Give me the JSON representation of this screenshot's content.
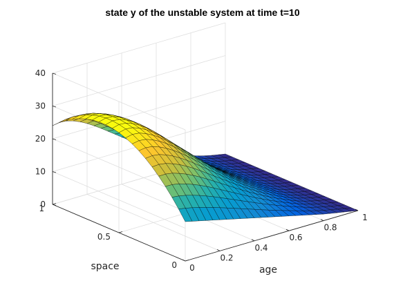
{
  "chart_data": {
    "type": "surface",
    "title": "state y of the unstable system at time t=10",
    "xlabel": "age",
    "ylabel": "space",
    "zlabel": "",
    "xlim": [
      0,
      1
    ],
    "ylim": [
      0,
      1
    ],
    "zlim": [
      0,
      40
    ],
    "x_ticks": [
      "0",
      "0.2",
      "0.4",
      "0.6",
      "0.8",
      "1"
    ],
    "y_ticks": [
      "0",
      "0.5",
      "1"
    ],
    "z_ticks": [
      "0",
      "10",
      "20",
      "30",
      "40"
    ],
    "grid": true,
    "colormap": "parula",
    "age": [
      0.0,
      0.04,
      0.08,
      0.12,
      0.16,
      0.2,
      0.24,
      0.28,
      0.32,
      0.36,
      0.4,
      0.44,
      0.48,
      0.52,
      0.56,
      0.6,
      0.64,
      0.68,
      0.72,
      0.76,
      0.8,
      0.84,
      0.88,
      0.92,
      0.96,
      1.0
    ],
    "space": [
      0.0,
      0.05,
      0.1,
      0.15,
      0.2,
      0.25,
      0.3,
      0.35,
      0.4,
      0.45,
      0.5,
      0.55,
      0.6,
      0.65,
      0.7,
      0.75,
      0.8,
      0.85,
      0.9,
      0.95,
      1.0
    ],
    "y_at_space_0": [
      12.0,
      11.5,
      11.0,
      10.5,
      10.0,
      9.5,
      9.0,
      8.5,
      8.0,
      7.5,
      7.0,
      6.5,
      6.0,
      5.5,
      5.0,
      4.5,
      4.0,
      3.5,
      3.0,
      2.5,
      2.0,
      1.6,
      1.2,
      0.8,
      0.4,
      0.0
    ],
    "y_at_space_1": [
      24.0,
      24.4,
      24.2,
      23.6,
      22.7,
      21.6,
      20.3,
      18.9,
      17.4,
      15.9,
      14.4,
      12.9,
      11.4,
      10.0,
      8.7,
      7.5,
      6.4,
      5.3,
      4.3,
      3.4,
      2.6,
      1.9,
      1.3,
      0.8,
      0.4,
      0.0
    ],
    "y_max_along_space": [
      30.5,
      31.0,
      30.8,
      30.0,
      28.9,
      27.5,
      25.9,
      24.1,
      22.2,
      20.3,
      18.4,
      16.5,
      14.6,
      12.8,
      11.1,
      9.5,
      8.0,
      6.6,
      5.3,
      4.1,
      3.0,
      2.1,
      1.4,
      0.8,
      0.4,
      0.0
    ]
  }
}
